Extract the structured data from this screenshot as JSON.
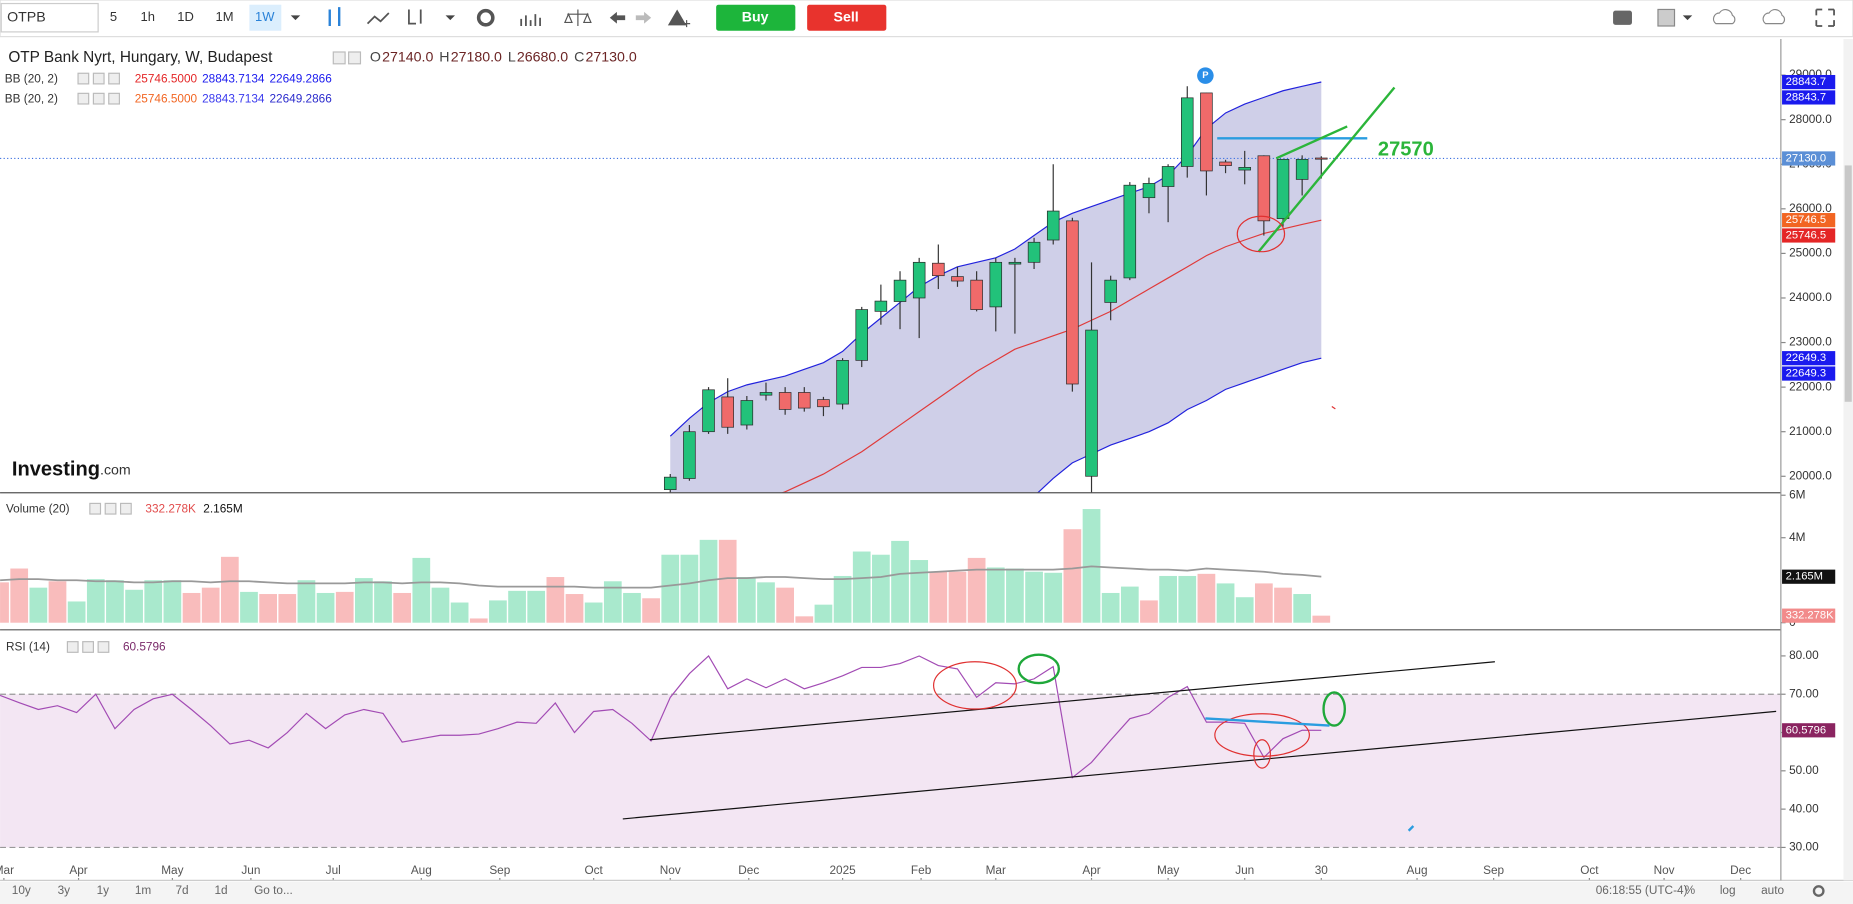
{
  "toolbar": {
    "symbol": "OTPB",
    "intervals": [
      "5",
      "1h",
      "1D",
      "1M",
      "1W"
    ],
    "buy": "Buy",
    "sell": "Sell"
  },
  "header": {
    "title": "OTP Bank Nyrt, Hungary, W, Budapest",
    "ohlc_labels": [
      "O",
      "H",
      "L",
      "C"
    ],
    "ohlc_values": [
      "27140.0",
      "27180.0",
      "26680.0",
      "27130.0"
    ]
  },
  "indicators": [
    {
      "name": "BB (20, 2)",
      "values": [
        "25746.5000",
        "28843.7134",
        "22649.2866"
      ]
    },
    {
      "name": "BB (20, 2)",
      "values": [
        "25746.5000",
        "28843.7134",
        "22649.2866"
      ]
    }
  ],
  "volume_legend": {
    "name": "Volume (20)",
    "values": [
      "332.278K",
      "2.165M"
    ]
  },
  "rsi_legend": {
    "name": "RSI (14)",
    "value": "60.5796"
  },
  "logo": {
    "brand": "Investing",
    "suffix": ".com"
  },
  "annotation": "27570",
  "footer": {
    "ranges": [
      "10y",
      "3y",
      "1y",
      "1m",
      "7d",
      "1d"
    ],
    "goto": "Go to...",
    "time": "06:18:55 (UTC-4)",
    "options": [
      "%",
      "log",
      "auto"
    ]
  },
  "chart_data": [
    {
      "type": "candlestick",
      "up_color": "#22c27a",
      "down_color": "#f06a6a",
      "band_color": "#2222dd",
      "middle_color": "#e03a3a",
      "band_fill": "#cfcfe8",
      "x": [
        35,
        36,
        37,
        38,
        39,
        40,
        41,
        42,
        43,
        44,
        45,
        46,
        47,
        48,
        49,
        50,
        51,
        52,
        53,
        54,
        55,
        56,
        57,
        58,
        59,
        60,
        61,
        62,
        63,
        64,
        65,
        66,
        67,
        68,
        69
      ],
      "open": [
        19700,
        19950,
        21000,
        21780,
        21150,
        21820,
        21880,
        21880,
        21720,
        21620,
        22600,
        23700,
        23920,
        24000,
        24780,
        24480,
        24400,
        23800,
        24760,
        24800,
        25300,
        25730,
        20000,
        23900,
        24450,
        26250,
        26500,
        26950,
        28600,
        27050,
        26870,
        27190,
        25780,
        26660,
        27140
      ],
      "high": [
        20050,
        21150,
        22000,
        22200,
        21800,
        22100,
        22000,
        22000,
        21780,
        22650,
        23800,
        24300,
        24600,
        24900,
        25200,
        24700,
        24600,
        24900,
        24900,
        25350,
        27000,
        25800,
        24800,
        24500,
        26600,
        26700,
        27000,
        28750,
        28600,
        27100,
        27300,
        27200,
        27100,
        27200,
        27180
      ],
      "low": [
        19600,
        19900,
        20950,
        20950,
        21050,
        21700,
        21380,
        21450,
        21350,
        21500,
        22450,
        23400,
        23300,
        23100,
        24200,
        24250,
        23700,
        23250,
        23200,
        24650,
        25200,
        21900,
        19600,
        23500,
        24400,
        25900,
        25700,
        26700,
        26300,
        26800,
        26550,
        25400,
        25600,
        26300,
        26680
      ],
      "close": [
        19980,
        21000,
        21940,
        21100,
        21700,
        21880,
        21500,
        21530,
        21560,
        22600,
        23740,
        23930,
        24400,
        24800,
        24500,
        24380,
        23740,
        24800,
        24800,
        25250,
        25950,
        22070,
        23280,
        24400,
        26530,
        26570,
        26950,
        28490,
        26850,
        26970,
        26930,
        25730,
        27110,
        27110,
        27130
      ],
      "upper_band": [
        20900,
        21300,
        21650,
        21900,
        22050,
        22150,
        22250,
        22400,
        22550,
        22800,
        23200,
        23550,
        23900,
        24250,
        24500,
        24700,
        24800,
        24900,
        25100,
        25400,
        25700,
        25900,
        26050,
        26200,
        26350,
        26500,
        26750,
        27200,
        27800,
        28150,
        28350,
        28500,
        28650,
        28750,
        28843.7134
      ],
      "middle_band": [
        18600,
        18800,
        19000,
        19200,
        19350,
        19500,
        19650,
        19850,
        20050,
        20300,
        20550,
        20850,
        21150,
        21450,
        21750,
        22050,
        22350,
        22600,
        22850,
        23000,
        23150,
        23300,
        23500,
        23700,
        23950,
        24200,
        24450,
        24700,
        24950,
        25150,
        25300,
        25450,
        25550,
        25650,
        25746.5
      ],
      "lower_band": [
        16500,
        16700,
        16900,
        17100,
        17250,
        17400,
        17550,
        17700,
        17850,
        18000,
        18100,
        18200,
        18300,
        18400,
        18600,
        18800,
        19000,
        19200,
        19400,
        19550,
        19950,
        20300,
        20500,
        20700,
        20850,
        21000,
        21200,
        21500,
        21700,
        21950,
        22100,
        22250,
        22400,
        22550,
        22649.2866
      ],
      "badges": [
        {
          "value": 28843.7134,
          "label": "28843.7",
          "color": "#1a1aee"
        },
        {
          "value": 28843.7134,
          "label": "28843.7",
          "color": "#1a1aee"
        },
        {
          "value": 27130,
          "label": "27130.0",
          "color": "#5b8fd6"
        },
        {
          "value": 25746.5,
          "label": "25746.5",
          "color": "#f26522"
        },
        {
          "value": 25746.5,
          "label": "25746.5",
          "color": "#e42626"
        },
        {
          "value": 22649.2866,
          "label": "22649.3",
          "color": "#1a1aee"
        },
        {
          "value": 22649.2866,
          "label": "22649.3",
          "color": "#1a1aee"
        }
      ],
      "xlim": [
        0,
        93
      ],
      "ylim": [
        19630,
        29810
      ],
      "yticks": [
        {
          "value": 20000,
          "label": "20000.0"
        },
        {
          "value": 21000,
          "label": "21000.0"
        },
        {
          "value": 22000,
          "label": "22000.0"
        },
        {
          "value": 23000,
          "label": "23000.0"
        },
        {
          "value": 24000,
          "label": "24000.0"
        },
        {
          "value": 25000,
          "label": "25000.0"
        },
        {
          "value": 26000,
          "label": "26000.0"
        },
        {
          "value": 27000,
          "label": "27000.0"
        },
        {
          "value": 28000,
          "label": "28000.0"
        },
        {
          "value": 29000,
          "label": "29000.0"
        }
      ],
      "grid": false
    },
    {
      "type": "bar",
      "ma_color": "#999999",
      "x": [
        0,
        1,
        2,
        3,
        4,
        5,
        6,
        7,
        8,
        9,
        10,
        11,
        12,
        13,
        14,
        15,
        16,
        17,
        18,
        19,
        20,
        21,
        22,
        23,
        24,
        25,
        26,
        27,
        28,
        29,
        30,
        31,
        32,
        33,
        34,
        35,
        36,
        37,
        38,
        39,
        40,
        41,
        42,
        43,
        44,
        45,
        46,
        47,
        48,
        49,
        50,
        51,
        52,
        53,
        54,
        55,
        56,
        57,
        58,
        59,
        60,
        61,
        62,
        63,
        64,
        65,
        66,
        67,
        68,
        69
      ],
      "values": [
        1900000,
        2550000,
        1650000,
        1950000,
        1000000,
        2050000,
        2000000,
        1550000,
        2000000,
        2000000,
        1400000,
        1650000,
        3100000,
        1450000,
        1350000,
        1350000,
        2000000,
        1400000,
        1450000,
        2100000,
        1950000,
        1400000,
        3050000,
        1650000,
        950000,
        200000,
        1050000,
        1500000,
        1500000,
        2150000,
        1350000,
        950000,
        1950000,
        1400000,
        1150000,
        3200000,
        3200000,
        3900000,
        3900000,
        2150000,
        1900000,
        1650000,
        300000,
        850000,
        2200000,
        3350000,
        3200000,
        3850000,
        2950000,
        2400000,
        2400000,
        3050000,
        2600000,
        2550000,
        2400000,
        2350000,
        4400000,
        5350000,
        1400000,
        1700000,
        1050000,
        2200000,
        2200000,
        2300000,
        1850000,
        1200000,
        1850000,
        1650000,
        1350000,
        332278
      ],
      "colors": [
        "#f9bcbc",
        "#f9bcbc",
        "#a9e9cd",
        "#f9bcbc",
        "#a9e9cd",
        "#a9e9cd",
        "#a9e9cd",
        "#a9e9cd",
        "#a9e9cd",
        "#a9e9cd",
        "#f9bcbc",
        "#f9bcbc",
        "#f9bcbc",
        "#a9e9cd",
        "#f9bcbc",
        "#f9bcbc",
        "#a9e9cd",
        "#a9e9cd",
        "#f9bcbc",
        "#a9e9cd",
        "#a9e9cd",
        "#f9bcbc",
        "#a9e9cd",
        "#a9e9cd",
        "#a9e9cd",
        "#f9bcbc",
        "#a9e9cd",
        "#a9e9cd",
        "#a9e9cd",
        "#f9bcbc",
        "#f9bcbc",
        "#a9e9cd",
        "#a9e9cd",
        "#a9e9cd",
        "#f9bcbc",
        "#a9e9cd",
        "#a9e9cd",
        "#a9e9cd",
        "#f9bcbc",
        "#a9e9cd",
        "#a9e9cd",
        "#f9bcbc",
        "#f9bcbc",
        "#a9e9cd",
        "#a9e9cd",
        "#a9e9cd",
        "#a9e9cd",
        "#a9e9cd",
        "#a9e9cd",
        "#f9bcbc",
        "#f9bcbc",
        "#f9bcbc",
        "#a9e9cd",
        "#a9e9cd",
        "#a9e9cd",
        "#a9e9cd",
        "#f9bcbc",
        "#a9e9cd",
        "#a9e9cd",
        "#a9e9cd",
        "#f9bcbc",
        "#a9e9cd",
        "#a9e9cd",
        "#f9bcbc",
        "#a9e9cd",
        "#a9e9cd",
        "#f9bcbc",
        "#f9bcbc",
        "#a9e9cd",
        "#f9bcbc"
      ],
      "ma": [
        2000000,
        2050000,
        2050000,
        2000000,
        2000000,
        1950000,
        1950000,
        1900000,
        1900000,
        1950000,
        1950000,
        1900000,
        1950000,
        1950000,
        1900000,
        1850000,
        1850000,
        1850000,
        1850000,
        1900000,
        1900000,
        1850000,
        1900000,
        1900000,
        1850000,
        1750000,
        1700000,
        1700000,
        1700000,
        1700000,
        1700000,
        1650000,
        1650000,
        1650000,
        1650000,
        1750000,
        1850000,
        2000000,
        2100000,
        2100000,
        2150000,
        2150000,
        2100000,
        2050000,
        2050000,
        2100000,
        2150000,
        2300000,
        2350000,
        2400000,
        2450000,
        2500000,
        2500000,
        2500000,
        2500000,
        2500000,
        2550000,
        2650000,
        2600000,
        2550000,
        2500000,
        2500000,
        2450000,
        2550000,
        2500000,
        2450000,
        2400000,
        2300000,
        2250000,
        2165000
      ],
      "badges": [
        {
          "value": 2165000,
          "label": "2.165M",
          "color": "#111111"
        },
        {
          "value": 332278,
          "label": "332.278K",
          "color": "#f28b8b"
        }
      ],
      "xlim": [
        0,
        93
      ],
      "ylim": [
        -280000,
        6060000
      ],
      "yticks": [
        0,
        {
          "value": 4000000,
          "label": "4M"
        },
        {
          "value": 6000000,
          "label": "6M"
        }
      ],
      "grid": false
    },
    {
      "type": "line",
      "color": "#a24bb4",
      "band_fill": "#f3e6f3",
      "band": [
        30,
        70
      ],
      "x": [
        0,
        1,
        2,
        3,
        4,
        5,
        6,
        7,
        8,
        9,
        10,
        11,
        12,
        13,
        14,
        15,
        16,
        17,
        18,
        19,
        20,
        21,
        22,
        23,
        24,
        25,
        26,
        27,
        28,
        29,
        30,
        31,
        32,
        33,
        34,
        35,
        36,
        37,
        38,
        39,
        40,
        41,
        42,
        43,
        44,
        45,
        46,
        47,
        48,
        49,
        50,
        51,
        52,
        53,
        54,
        55,
        56,
        57,
        58,
        59,
        60,
        61,
        62,
        63,
        64,
        65,
        66,
        67,
        68,
        69
      ],
      "values": [
        69.7,
        67.8,
        66,
        67,
        65.2,
        70,
        61,
        66,
        68.8,
        70,
        66,
        61.8,
        57,
        58,
        56,
        60,
        65,
        61,
        64.6,
        66,
        65,
        57.5,
        58.4,
        59.3,
        59.3,
        59.6,
        61,
        62.7,
        62.4,
        67.7,
        60,
        65.5,
        66,
        62.4,
        57.8,
        69.2,
        75.4,
        80,
        71.4,
        74,
        71.7,
        74,
        71.4,
        73,
        74.8,
        77,
        77,
        78,
        80,
        77.5,
        76.6,
        69.2,
        73,
        72.7,
        74,
        77.2,
        48.2,
        52.2,
        58,
        63.6,
        65,
        69.2,
        72,
        62.7,
        62.7,
        62.4,
        53.5,
        58.4,
        60.6,
        60.5796
      ],
      "badges": [
        {
          "value": 60.5796,
          "label": "60.5796",
          "color": "#8a2460"
        }
      ],
      "xlim": [
        0,
        93
      ],
      "ylim": [
        21.4,
        86.5
      ],
      "yticks": [
        {
          "value": 30,
          "label": "30.00"
        },
        {
          "value": 40,
          "label": "40.00"
        },
        {
          "value": 50,
          "label": "50.00"
        },
        {
          "value": 60,
          "label": "60.00"
        },
        {
          "value": 70,
          "label": "70.00"
        },
        {
          "value": 80,
          "label": "80.00"
        }
      ],
      "xticks": [
        {
          "value": 0.2,
          "label": "Mar"
        },
        {
          "value": 4.1,
          "label": "Apr"
        },
        {
          "value": 9,
          "label": "May"
        },
        {
          "value": 13.1,
          "label": "Jun"
        },
        {
          "value": 17.4,
          "label": "Jul"
        },
        {
          "value": 22,
          "label": "Aug"
        },
        {
          "value": 26.1,
          "label": "Sep"
        },
        {
          "value": 31,
          "label": "Oct"
        },
        {
          "value": 35,
          "label": "Nov"
        },
        {
          "value": 39.1,
          "label": "Dec"
        },
        {
          "value": 44,
          "label": "2025"
        },
        {
          "value": 48.1,
          "label": "Feb"
        },
        {
          "value": 52,
          "label": "Mar"
        },
        {
          "value": 57,
          "label": "Apr"
        },
        {
          "value": 61,
          "label": "May"
        },
        {
          "value": 65,
          "label": "Jun"
        },
        {
          "value": 69,
          "label": "30"
        },
        {
          "value": 74,
          "label": "Aug"
        },
        {
          "value": 78,
          "label": "Sep"
        },
        {
          "value": 83,
          "label": "Oct"
        },
        {
          "value": 86.9,
          "label": "Nov"
        },
        {
          "value": 90.9,
          "label": "Dec"
        }
      ],
      "grid": false
    }
  ]
}
